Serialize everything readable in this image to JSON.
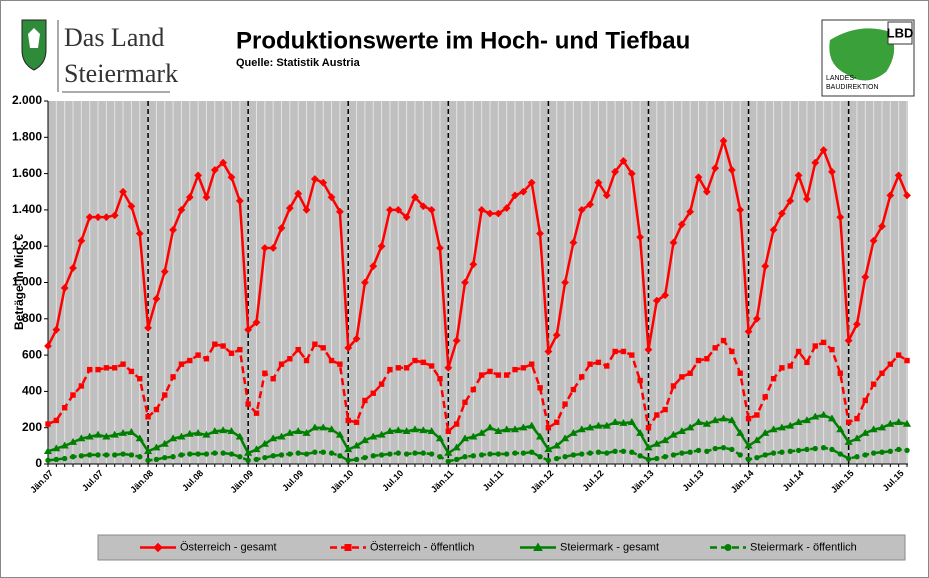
{
  "header": {
    "logo_left": [
      "Das Land",
      "Steiermark"
    ],
    "logo_right": "LBD",
    "logo_right_sub": [
      "LANDES-",
      "BAUDIREKTION"
    ]
  },
  "chart_data": {
    "type": "line",
    "title": "Produktionswerte im Hoch- und Tiefbau",
    "subtitle": "Quelle: Statistik Austria",
    "y_label": "Beträge in Mio. €",
    "categories": [
      "Jän.07",
      null,
      null,
      null,
      null,
      null,
      "Jul.07",
      null,
      null,
      null,
      null,
      null,
      "Jän.08",
      null,
      null,
      null,
      null,
      null,
      "Jul.08",
      null,
      null,
      null,
      null,
      null,
      "Jän.09",
      null,
      null,
      null,
      null,
      null,
      "Jul.09",
      null,
      null,
      null,
      null,
      null,
      "Jän.10",
      null,
      null,
      null,
      null,
      null,
      "Jul.10",
      null,
      null,
      null,
      null,
      null,
      "Jän.11",
      null,
      null,
      null,
      null,
      null,
      "Jul.11",
      null,
      null,
      null,
      null,
      null,
      "Jän.12",
      null,
      null,
      null,
      null,
      null,
      "Jul.12",
      null,
      null,
      null,
      null,
      null,
      "Jän.13",
      null,
      null,
      null,
      null,
      null,
      "Jul.13",
      null,
      null,
      null,
      null,
      null,
      "Jän.14",
      null,
      null,
      null,
      null,
      null,
      "Jul.14",
      null,
      null,
      null,
      null,
      null,
      "Jän.15",
      null,
      null,
      null,
      null,
      null,
      "Jul.15",
      null
    ],
    "ylim": [
      0,
      2000
    ],
    "yticks": [
      0,
      200,
      400,
      600,
      800,
      {
        "value": 1000,
        "label": "1.000"
      },
      {
        "value": 1200,
        "label": "1.200"
      },
      {
        "value": 1400,
        "label": "1.400"
      },
      {
        "value": 1600,
        "label": "1.600"
      },
      {
        "value": 1800,
        "label": "1.800"
      },
      {
        "value": 2000,
        "label": "2.000"
      }
    ],
    "grid": "vertical",
    "legend": "bottom",
    "series": [
      {
        "name": "Österreich - gesamt",
        "color": "#ff0000",
        "marker": "diamond",
        "dashed": false,
        "values": [
          650,
          740,
          970,
          1080,
          1230,
          1360,
          1360,
          1360,
          1370,
          1500,
          1420,
          1270,
          750,
          910,
          1060,
          1290,
          1400,
          1470,
          1590,
          1470,
          1620,
          1660,
          1580,
          1450,
          740,
          780,
          1190,
          1190,
          1300,
          1410,
          1490,
          1400,
          1570,
          1550,
          1470,
          1390,
          640,
          690,
          1000,
          1090,
          1200,
          1400,
          1400,
          1360,
          1470,
          1420,
          1400,
          1190,
          530,
          680,
          1000,
          1100,
          1400,
          1380,
          1380,
          1410,
          1480,
          1500,
          1550,
          1270,
          620,
          710,
          1000,
          1220,
          1400,
          1430,
          1550,
          1480,
          1610,
          1670,
          1600,
          1250,
          630,
          900,
          930,
          1220,
          1320,
          1390,
          1580,
          1500,
          1630,
          1780,
          1620,
          1400,
          730,
          800,
          1090,
          1290,
          1380,
          1450,
          1590,
          1460,
          1660,
          1730,
          1610,
          1360,
          680,
          770,
          1030,
          1230,
          1310,
          1480,
          1590,
          1480
        ]
      },
      {
        "name": "Österreich - öffentlich",
        "color": "#ff0000",
        "marker": "square",
        "dashed": true,
        "values": [
          220,
          240,
          310,
          380,
          430,
          520,
          520,
          530,
          530,
          550,
          510,
          470,
          260,
          300,
          380,
          480,
          550,
          570,
          600,
          580,
          660,
          650,
          610,
          630,
          330,
          280,
          500,
          470,
          550,
          580,
          630,
          570,
          660,
          640,
          570,
          550,
          240,
          230,
          350,
          390,
          440,
          520,
          530,
          530,
          570,
          560,
          540,
          470,
          180,
          220,
          340,
          410,
          490,
          510,
          490,
          490,
          520,
          530,
          550,
          420,
          200,
          230,
          330,
          410,
          480,
          550,
          560,
          540,
          620,
          620,
          600,
          460,
          200,
          270,
          300,
          430,
          480,
          500,
          570,
          580,
          640,
          680,
          620,
          500,
          250,
          270,
          370,
          470,
          530,
          540,
          620,
          560,
          650,
          670,
          630,
          500,
          230,
          250,
          350,
          440,
          500,
          550,
          600,
          570
        ]
      },
      {
        "name": "Steiermark - gesamt",
        "color": "#008000",
        "marker": "triangle",
        "dashed": false,
        "values": [
          70,
          85,
          100,
          120,
          140,
          150,
          160,
          150,
          160,
          170,
          175,
          140,
          70,
          90,
          110,
          140,
          150,
          165,
          170,
          160,
          180,
          185,
          180,
          150,
          60,
          80,
          110,
          140,
          150,
          170,
          180,
          170,
          200,
          200,
          190,
          160,
          80,
          100,
          130,
          150,
          160,
          180,
          185,
          180,
          190,
          185,
          180,
          140,
          60,
          90,
          140,
          150,
          170,
          200,
          180,
          190,
          190,
          200,
          210,
          150,
          80,
          100,
          140,
          170,
          190,
          200,
          210,
          210,
          230,
          225,
          230,
          170,
          90,
          110,
          130,
          160,
          180,
          200,
          230,
          220,
          240,
          250,
          240,
          170,
          100,
          130,
          170,
          190,
          200,
          210,
          230,
          240,
          260,
          270,
          250,
          190,
          120,
          140,
          170,
          190,
          200,
          220,
          230,
          220
        ]
      },
      {
        "name": "Steiermark - öffentlich",
        "color": "#008000",
        "marker": "circle",
        "dashed": true,
        "values": [
          20,
          25,
          30,
          40,
          45,
          50,
          50,
          50,
          50,
          55,
          50,
          40,
          20,
          25,
          35,
          40,
          50,
          55,
          55,
          55,
          60,
          60,
          55,
          40,
          20,
          25,
          35,
          45,
          50,
          55,
          60,
          55,
          65,
          65,
          60,
          45,
          20,
          25,
          35,
          45,
          50,
          55,
          60,
          55,
          60,
          60,
          55,
          40,
          15,
          25,
          40,
          45,
          50,
          55,
          55,
          55,
          60,
          60,
          65,
          40,
          20,
          30,
          40,
          50,
          55,
          60,
          65,
          60,
          70,
          70,
          65,
          45,
          25,
          30,
          40,
          50,
          60,
          65,
          75,
          70,
          85,
          90,
          80,
          50,
          25,
          35,
          50,
          60,
          65,
          70,
          75,
          80,
          85,
          90,
          80,
          55,
          30,
          40,
          50,
          60,
          65,
          70,
          80,
          75
        ]
      }
    ]
  }
}
